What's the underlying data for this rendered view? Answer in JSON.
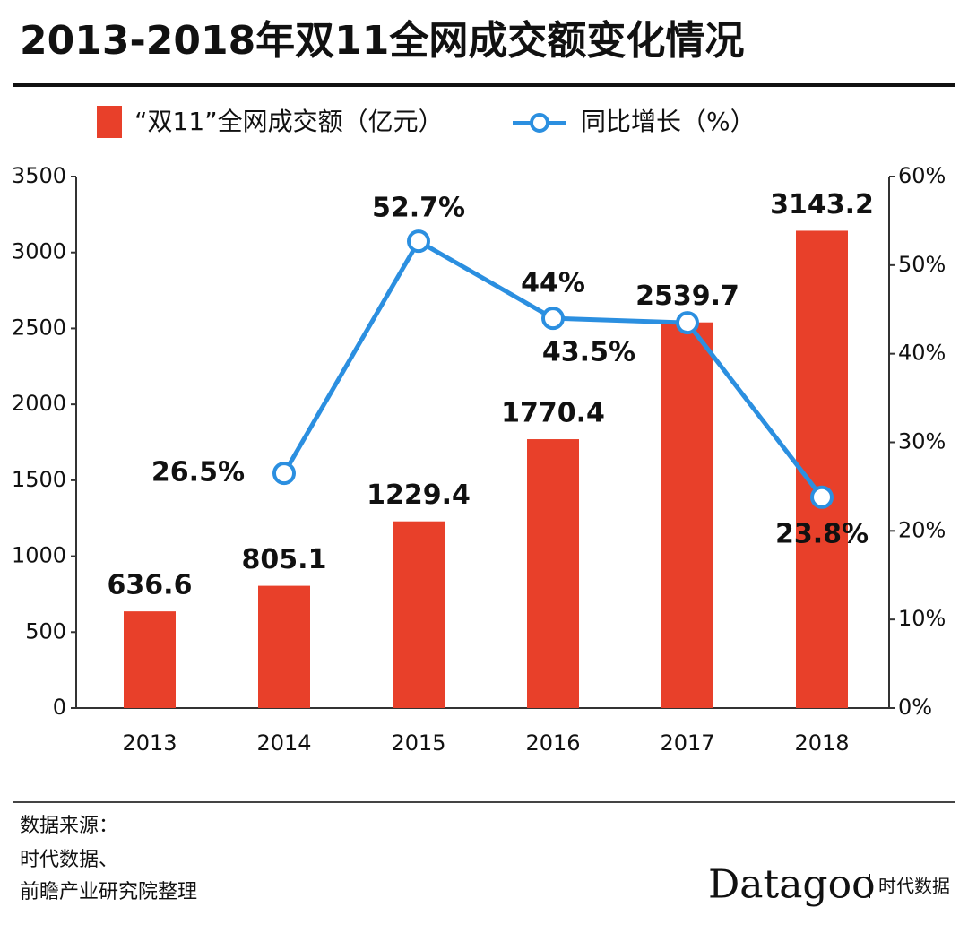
{
  "chart_data": {
    "type": "bar",
    "title": "2013-2018年双11全网成交额变化情况",
    "categories": [
      "2013",
      "2014",
      "2015",
      "2016",
      "2017",
      "2018"
    ],
    "series": [
      {
        "name": "“双11”全网成交额（亿元）",
        "type": "bar",
        "color": "#e8402a",
        "values": [
          636.6,
          805.1,
          1229.4,
          1770.4,
          2539.7,
          3143.2
        ]
      },
      {
        "name": "同比增长（%）",
        "type": "line",
        "axis": "y2",
        "color": "#2b8fe0",
        "values": [
          null,
          26.5,
          52.7,
          44,
          43.5,
          23.8
        ],
        "value_labels": [
          null,
          "26.5%",
          "52.7%",
          "44%",
          "43.5%",
          "23.8%"
        ]
      }
    ],
    "ylim": [
      0,
      3500
    ],
    "yticks": [
      0,
      500,
      1000,
      1500,
      2000,
      2500,
      3000,
      3500
    ],
    "y2lim": [
      0,
      60
    ],
    "y2ticks": [
      {
        "value": 0,
        "label": "0%"
      },
      {
        "value": 10,
        "label": "10%"
      },
      {
        "value": 20,
        "label": "20%"
      },
      {
        "value": 30,
        "label": "30%"
      },
      {
        "value": 40,
        "label": "40%"
      },
      {
        "value": 50,
        "label": "50%"
      },
      {
        "value": 60,
        "label": "60%"
      }
    ],
    "legend": "top",
    "source": [
      "数据来源：",
      "时代数据、",
      "前瞻产业研究院整理"
    ],
    "logo": "Datagoo",
    "logo_subtitle": "时代数据"
  }
}
